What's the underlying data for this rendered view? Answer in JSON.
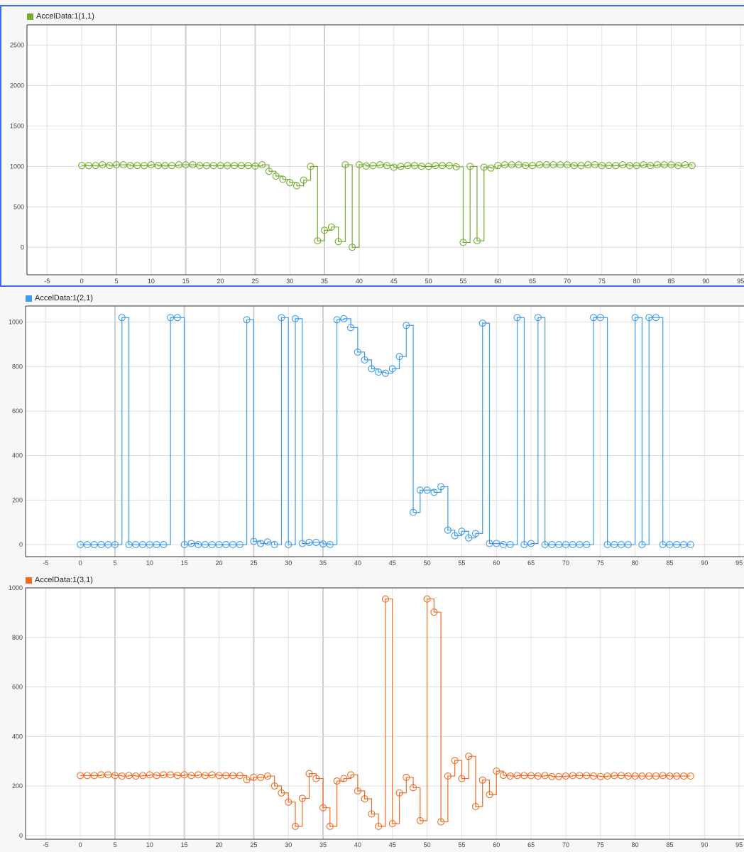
{
  "chart_data": [
    {
      "type": "line",
      "style": "stairs-with-circle-markers",
      "legend": "AccelData:1(1,1)",
      "color": "#77AC30",
      "selected": true,
      "xlim": [
        -7.9,
        95.7
      ],
      "ylim": [
        -340,
        2750
      ],
      "xticks": [
        -5,
        0,
        5,
        10,
        15,
        20,
        25,
        30,
        35,
        40,
        45,
        50,
        55,
        60,
        65,
        70,
        75,
        80,
        85,
        90,
        95
      ],
      "yticks": [
        0,
        500,
        1000,
        1500,
        2000,
        2500
      ],
      "grid": true,
      "x_start": 0,
      "x_step": 1,
      "values": [
        1010,
        1010,
        1010,
        1020,
        1010,
        1020,
        1020,
        1010,
        1010,
        1010,
        1020,
        1010,
        1010,
        1010,
        1020,
        1020,
        1020,
        1010,
        1010,
        1010,
        1010,
        1010,
        1010,
        1010,
        1010,
        1005,
        1020,
        940,
        880,
        840,
        800,
        760,
        830,
        1000,
        80,
        210,
        250,
        70,
        1020,
        0,
        1020,
        1005,
        1010,
        1020,
        1010,
        990,
        1000,
        1010,
        1010,
        1000,
        1000,
        1010,
        1010,
        1010,
        995,
        60,
        1000,
        80,
        990,
        980,
        1010,
        1020,
        1020,
        1020,
        1010,
        1010,
        1020,
        1020,
        1020,
        1020,
        1020,
        1010,
        1010,
        1020,
        1020,
        1010,
        1010,
        1010,
        1020,
        1010,
        1010,
        1020,
        1010,
        1020,
        1020,
        1020,
        1010,
        1020,
        1010
      ]
    },
    {
      "type": "line",
      "style": "stairs-with-circle-markers",
      "legend": "AccelData:1(2,1)",
      "color": "#3D9BF0",
      "xlim": [
        -7.9,
        95.7
      ],
      "ylim": [
        -54,
        1072
      ],
      "xticks": [
        -5,
        0,
        5,
        10,
        15,
        20,
        25,
        30,
        35,
        40,
        45,
        50,
        55,
        60,
        65,
        70,
        75,
        80,
        85,
        90,
        95
      ],
      "yticks": [
        0,
        200,
        400,
        600,
        800,
        1000
      ],
      "grid": true,
      "x_start": 0,
      "x_step": 1,
      "values": [
        0,
        0,
        0,
        0,
        0,
        0,
        1020,
        0,
        0,
        0,
        0,
        0,
        0,
        1020,
        1020,
        0,
        5,
        0,
        0,
        0,
        0,
        0,
        0,
        0,
        1010,
        15,
        5,
        12,
        0,
        1020,
        0,
        1015,
        5,
        10,
        10,
        3,
        0,
        1010,
        1015,
        975,
        865,
        830,
        790,
        775,
        770,
        790,
        845,
        985,
        145,
        245,
        245,
        235,
        260,
        65,
        40,
        60,
        30,
        50,
        995,
        5,
        5,
        0,
        0,
        1020,
        0,
        5,
        1020,
        0,
        0,
        0,
        0,
        0,
        0,
        0,
        1020,
        1020,
        0,
        0,
        0,
        0,
        1020,
        0,
        1020,
        1020,
        0,
        0,
        0,
        0,
        0
      ]
    },
    {
      "type": "line",
      "style": "stairs-with-circle-markers",
      "legend": "AccelData:1(3,1)",
      "color": "#F26B21",
      "xlim": [
        -7.9,
        95.7
      ],
      "ylim": [
        -15,
        1000
      ],
      "xticks": [
        -5,
        0,
        5,
        10,
        15,
        20,
        25,
        30,
        35,
        40,
        45,
        50,
        55,
        60,
        65,
        70,
        75,
        80,
        85,
        90,
        95
      ],
      "yticks": [
        0,
        200,
        400,
        600,
        800,
        1000
      ],
      "grid": true,
      "x_start": 0,
      "x_step": 1,
      "values": [
        242,
        242,
        242,
        245,
        245,
        242,
        240,
        242,
        240,
        242,
        245,
        242,
        245,
        245,
        242,
        245,
        242,
        245,
        242,
        245,
        242,
        242,
        242,
        242,
        225,
        235,
        235,
        240,
        200,
        172,
        135,
        37,
        150,
        250,
        230,
        112,
        37,
        220,
        230,
        245,
        180,
        148,
        87,
        37,
        955,
        48,
        172,
        235,
        193,
        60,
        955,
        902,
        55,
        240,
        303,
        230,
        320,
        117,
        224,
        165,
        260,
        243,
        240,
        242,
        242,
        242,
        240,
        242,
        238,
        238,
        240,
        242,
        242,
        242,
        240,
        238,
        240,
        242,
        242,
        240,
        240,
        240,
        240,
        240,
        242,
        240,
        240,
        240,
        240
      ]
    }
  ]
}
